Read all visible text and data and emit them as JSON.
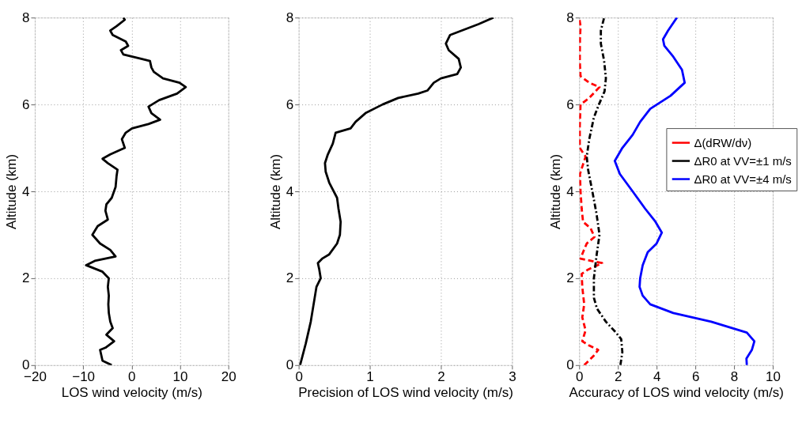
{
  "chart_data": [
    {
      "type": "line",
      "xlabel": "LOS wind velocity (m/s)",
      "ylabel": "Altitude (km)",
      "xlim": [
        -20,
        20
      ],
      "xticks": [
        -20,
        -10,
        0,
        10,
        20
      ],
      "ylim": [
        0,
        8
      ],
      "yticks": [
        0,
        2,
        4,
        6,
        8
      ],
      "grid": true,
      "line_style": "solid",
      "series": [
        {
          "color": "#000000",
          "x": [
            -4.1,
            -6.0,
            -6.2,
            -6.5,
            -5.4,
            -3.6,
            -5.2,
            -3.9,
            -4.4,
            -4.7,
            -4.8,
            -4.7,
            -4.9,
            -4.7,
            -6.0,
            -9.4,
            -7.6,
            -3.3,
            -4.4,
            -6.5,
            -8.1,
            -7.0,
            -4.9,
            -5.4,
            -5.2,
            -4.1,
            -3.3,
            -3.1,
            -2.9,
            -4.9,
            -6.0,
            -4.4,
            -1.4,
            -2.0,
            -1.2,
            0.1,
            3.5,
            5.9,
            4.1,
            3.5,
            5.7,
            9.4,
            11.2,
            9.9,
            6.5,
            4.6,
            4.1,
            3.8,
            2.0,
            -1.7,
            -2.2,
            -0.7,
            -1.2,
            -3.9,
            -4.4,
            -3.1,
            -1.4,
            -1.7
          ],
          "values": [
            0,
            0.1,
            0.2,
            0.35,
            0.4,
            0.55,
            0.7,
            0.85,
            1.0,
            1.2,
            1.4,
            1.6,
            1.8,
            2.0,
            2.15,
            2.3,
            2.4,
            2.5,
            2.65,
            2.8,
            3.0,
            3.2,
            3.35,
            3.55,
            3.7,
            3.85,
            4.1,
            4.35,
            4.5,
            4.65,
            4.75,
            4.85,
            5.0,
            5.2,
            5.35,
            5.45,
            5.55,
            5.65,
            5.8,
            5.95,
            6.1,
            6.25,
            6.4,
            6.5,
            6.6,
            6.75,
            6.85,
            7.0,
            7.05,
            7.15,
            7.25,
            7.35,
            7.45,
            7.6,
            7.7,
            7.8,
            7.95,
            8.0
          ]
        }
      ]
    },
    {
      "type": "line",
      "xlabel": "Precision of LOS wind velocity (m/s)",
      "ylabel": "Altitude (km)",
      "xlim": [
        0,
        3
      ],
      "xticks": [
        0,
        1,
        2,
        3
      ],
      "ylim": [
        0,
        8
      ],
      "yticks": [
        0,
        2,
        4,
        6,
        8
      ],
      "grid": true,
      "line_style": "solid",
      "series": [
        {
          "color": "#000000",
          "x": [
            0.02,
            0.1,
            0.17,
            0.22,
            0.25,
            0.31,
            0.29,
            0.27,
            0.33,
            0.43,
            0.54,
            0.58,
            0.59,
            0.56,
            0.54,
            0.43,
            0.38,
            0.37,
            0.41,
            0.48,
            0.52,
            0.73,
            0.8,
            0.94,
            1.18,
            1.4,
            1.68,
            1.81,
            1.9,
            2.0,
            2.23,
            2.28,
            2.25,
            2.11,
            2.07,
            2.13,
            2.29,
            2.53,
            2.74
          ],
          "values": [
            0,
            0.5,
            1.0,
            1.5,
            1.8,
            2.0,
            2.2,
            2.35,
            2.45,
            2.55,
            2.8,
            3.0,
            3.3,
            3.6,
            3.85,
            4.2,
            4.45,
            4.65,
            4.85,
            5.1,
            5.35,
            5.45,
            5.6,
            5.8,
            6.0,
            6.15,
            6.25,
            6.32,
            6.5,
            6.6,
            6.7,
            6.85,
            7.05,
            7.25,
            7.4,
            7.6,
            7.7,
            7.85,
            8.0
          ]
        }
      ]
    },
    {
      "type": "line",
      "xlabel": "Accuracy of LOS wind velocity (m/s)",
      "ylabel": "Altitude (km)",
      "xlim": [
        0,
        10
      ],
      "xticks": [
        0,
        2,
        4,
        6,
        8,
        10
      ],
      "ylim": [
        0,
        8
      ],
      "yticks": [
        0,
        2,
        4,
        6,
        8
      ],
      "grid": true,
      "legend": "right",
      "series": [
        {
          "name": "Δ(dRW/dν)",
          "color": "#ff0000",
          "line_style": "dashed",
          "x": [
            0.26,
            0.72,
            0.98,
            0.52,
            0.16,
            0.33,
            0.16,
            0.26,
            0.16,
            0.13,
            0.46,
            1.18,
            0.07,
            0.2,
            0.39,
            0.79,
            0.59,
            0.2,
            0.13,
            0.07,
            0.04,
            0.33,
            0.03,
            0.03,
            0.07,
            0.52,
            1.05,
            0.52,
            0.07,
            0.03,
            0.04,
            0.07,
            0
          ],
          "values": [
            0,
            0.2,
            0.35,
            0.45,
            0.55,
            0.8,
            1.1,
            1.4,
            1.8,
            2.1,
            2.2,
            2.35,
            2.45,
            2.6,
            2.8,
            2.95,
            3.15,
            3.3,
            3.6,
            4.0,
            4.4,
            4.8,
            5.0,
            5.5,
            6.0,
            6.15,
            6.4,
            6.5,
            6.65,
            7.0,
            7.5,
            7.8,
            8.0
          ]
        },
        {
          "name": "ΔR0 at VV=±1 m/s",
          "color": "#000000",
          "line_style": "dashdot",
          "x": [
            2.13,
            2.23,
            2.17,
            1.9,
            1.38,
            0.92,
            0.76,
            0.76,
            0.89,
            1.05,
            0.89,
            0.68,
            0.46,
            0.39,
            0.52,
            0.76,
            1.02,
            1.31,
            1.38,
            1.29,
            1.12,
            1.12,
            1.29
          ],
          "values": [
            0,
            0.3,
            0.6,
            0.75,
            1.0,
            1.3,
            1.55,
            2.0,
            2.5,
            3.0,
            3.5,
            4.0,
            4.5,
            4.8,
            5.2,
            5.7,
            6.0,
            6.3,
            6.6,
            7.0,
            7.4,
            7.7,
            8.0
          ]
        },
        {
          "name": "ΔR0 at VV=±4 m/s",
          "color": "#0000ff",
          "line_style": "solid",
          "x": [
            8.66,
            8.64,
            8.92,
            9.05,
            8.66,
            6.82,
            4.86,
            3.67,
            3.28,
            3.12,
            3.15,
            3.28,
            3.54,
            4.0,
            4.27,
            3.94,
            3.41,
            2.76,
            2.1,
            1.84,
            2.23,
            2.76,
            3.15,
            3.67,
            4.72,
            5.45,
            5.31,
            4.86,
            4.4,
            4.33,
            4.59,
            5.05
          ],
          "values": [
            0,
            0.15,
            0.35,
            0.55,
            0.75,
            1.0,
            1.2,
            1.4,
            1.6,
            1.8,
            2.0,
            2.3,
            2.6,
            2.8,
            3.05,
            3.3,
            3.6,
            4.0,
            4.4,
            4.7,
            5.0,
            5.3,
            5.6,
            5.9,
            6.2,
            6.5,
            6.8,
            7.1,
            7.35,
            7.5,
            7.7,
            8.0
          ]
        }
      ]
    }
  ]
}
